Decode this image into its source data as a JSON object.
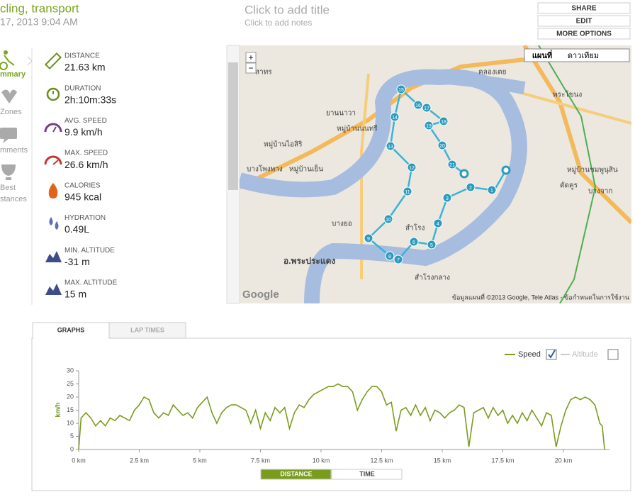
{
  "header": {
    "title": "cling, transport",
    "date": "17, 2013 9:04 AM",
    "add_title": "Click to add title",
    "add_notes": "Click to add notes",
    "buttons": [
      "SHARE",
      "EDIT",
      "MORE OPTIONS"
    ]
  },
  "nav": [
    [
      "mmary"
    ],
    [
      "Zones"
    ],
    [
      "mments"
    ],
    [
      "Best",
      "stances"
    ]
  ],
  "stats": [
    {
      "label": "DISTANCE",
      "value": "21.63 km"
    },
    {
      "label": "DURATION",
      "value": "2h:10m:33s"
    },
    {
      "label": "AVG. SPEED",
      "value": "9.9 km/h"
    },
    {
      "label": "MAX. SPEED",
      "value": "26.6 km/h"
    },
    {
      "label": "CALORIES",
      "value": "945 kcal"
    },
    {
      "label": "HYDRATION",
      "value": "0.49L"
    },
    {
      "label": "MIN. ALTITUDE",
      "value": "-31 m"
    },
    {
      "label": "MAX. ALTITUDE",
      "value": "15 m"
    }
  ],
  "map": {
    "tabs": [
      "แผนที่",
      "ดาวเทียม"
    ],
    "zoom": [
      "+",
      "−"
    ],
    "labels": [
      "สาทร",
      "คลองเตย",
      "ยานนาวา",
      "หมู่บ้านนนทรี",
      "หมู่บ้านไอสิริ",
      "บางโพงพาง",
      "หมู่บ้านเย็น",
      "บางยอ",
      "อ.พระประแดง",
      "สำโรง",
      "สำโรงกลาง",
      "พระโขนง",
      "บางจาก",
      "หมู่บ้านชมพูนุสิน",
      "ตัดคูร"
    ],
    "markers": [
      1,
      2,
      3,
      4,
      5,
      6,
      7,
      8,
      9,
      10,
      11,
      12,
      13,
      14,
      15,
      16,
      17,
      18,
      19,
      20,
      21
    ],
    "copyright": "ข้อมูลแผนที่ ©2013 Google, Tele Atlas - ข้อกำหนดในการใช้งาน",
    "logo": "Google"
  },
  "tabs": [
    "GRAPHS",
    "LAP TIMES"
  ],
  "toggle": [
    "DISTANCE",
    "TIME"
  ],
  "chart_data": {
    "type": "line",
    "y_label": "km/h",
    "altitude_label": "Altitude",
    "series": [
      {
        "name": "Speed",
        "color": "#7a9c1e",
        "values": [
          0,
          12,
          14,
          12,
          9,
          11,
          9,
          12,
          11,
          13,
          12,
          11,
          15,
          17,
          20,
          19,
          14,
          12,
          14,
          13,
          17,
          15,
          13,
          14,
          12,
          16,
          18,
          20,
          14,
          10,
          14,
          16,
          17,
          17,
          16,
          15,
          10,
          15,
          8,
          14,
          11,
          16,
          14,
          16,
          8,
          14,
          17,
          16,
          19,
          21,
          22,
          23,
          24,
          24,
          25,
          24,
          24,
          22,
          15,
          19,
          22,
          24,
          24,
          22,
          17,
          18,
          7,
          15,
          16,
          13,
          17,
          13,
          16,
          11,
          15,
          14,
          12,
          14,
          15,
          17,
          16,
          1,
          14,
          15,
          16,
          12,
          16,
          13,
          15,
          10,
          13,
          10,
          14,
          11,
          15,
          12,
          9,
          14,
          13,
          1,
          9,
          15,
          19,
          20,
          19,
          20,
          19,
          17,
          10,
          9,
          0
        ]
      }
    ],
    "x": [
      0,
      0.1,
      0.3,
      0.5,
      0.7,
      0.9,
      1.1,
      1.3,
      1.5,
      1.7,
      1.9,
      2.1,
      2.3,
      2.5,
      2.7,
      2.9,
      3.1,
      3.3,
      3.5,
      3.7,
      3.9,
      4.1,
      4.3,
      4.5,
      4.7,
      4.9,
      5.1,
      5.3,
      5.5,
      5.7,
      5.9,
      6.1,
      6.3,
      6.5,
      6.7,
      6.9,
      7.1,
      7.3,
      7.5,
      7.7,
      7.9,
      8.1,
      8.3,
      8.5,
      8.7,
      8.9,
      9.1,
      9.3,
      9.5,
      9.7,
      9.9,
      10.1,
      10.3,
      10.5,
      10.7,
      10.9,
      11.1,
      11.3,
      11.5,
      11.7,
      11.9,
      12.1,
      12.3,
      12.5,
      12.7,
      12.9,
      13.1,
      13.3,
      13.5,
      13.7,
      13.9,
      14.1,
      14.3,
      14.5,
      14.7,
      14.9,
      15.1,
      15.3,
      15.5,
      15.7,
      15.9,
      16.1,
      16.3,
      16.5,
      16.7,
      16.9,
      17.1,
      17.3,
      17.5,
      17.7,
      17.9,
      18.1,
      18.3,
      18.5,
      18.7,
      18.9,
      19.1,
      19.3,
      19.5,
      19.7,
      19.9,
      20.1,
      20.3,
      20.5,
      20.7,
      20.9,
      21.1,
      21.3,
      21.5,
      21.6,
      21.7
    ],
    "xlim": [
      0,
      21.9
    ],
    "xticks": [
      {
        "value": 0,
        "label": "0 km"
      },
      {
        "value": 2.5,
        "label": "2.5 km"
      },
      {
        "value": 5,
        "label": "5 km"
      },
      {
        "value": 7.5,
        "label": "7.5 km"
      },
      {
        "value": 10,
        "label": "10 km"
      },
      {
        "value": 12.5,
        "label": "12.5 km"
      },
      {
        "value": 15,
        "label": "15 km"
      },
      {
        "value": 17.5,
        "label": "17.5 km"
      },
      {
        "value": 20,
        "label": "20 km"
      }
    ],
    "ylim": [
      0,
      30
    ],
    "yticks": [
      0,
      5,
      10,
      15,
      20,
      25,
      30
    ],
    "grid": false,
    "speed_checked": true,
    "altitude_checked": false
  }
}
